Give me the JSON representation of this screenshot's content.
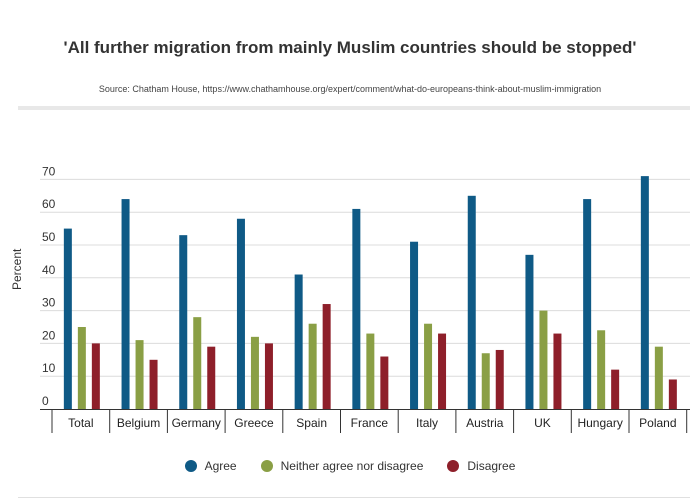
{
  "header": {
    "title": "'All further migration from mainly Muslim countries should be stopped'",
    "source": "Source: Chatham House, https://www.chathamhouse.org/expert/comment/what-do-europeans-think-about-muslim-immigration"
  },
  "chart_data": {
    "type": "bar",
    "title": "'All further migration from mainly Muslim countries should be stopped'",
    "ylabel": "Percent",
    "xlabel": "",
    "ylim": [
      0,
      75
    ],
    "yticks": [
      0,
      10,
      20,
      30,
      40,
      50,
      60,
      70
    ],
    "grid": true,
    "legend_position": "bottom",
    "categories": [
      "Total",
      "Belgium",
      "Germany",
      "Greece",
      "Spain",
      "France",
      "Italy",
      "Austria",
      "UK",
      "Hungary",
      "Poland"
    ],
    "series": [
      {
        "name": "Agree",
        "color": "#0f5a86",
        "values": [
          55,
          64,
          53,
          58,
          41,
          61,
          51,
          65,
          47,
          64,
          71
        ]
      },
      {
        "name": "Neither agree nor disagree",
        "color": "#8a9f45",
        "values": [
          25,
          21,
          28,
          22,
          26,
          23,
          26,
          17,
          30,
          24,
          19
        ]
      },
      {
        "name": "Disagree",
        "color": "#8e1f2a",
        "values": [
          20,
          15,
          19,
          20,
          32,
          16,
          23,
          18,
          23,
          12,
          9
        ]
      }
    ]
  }
}
